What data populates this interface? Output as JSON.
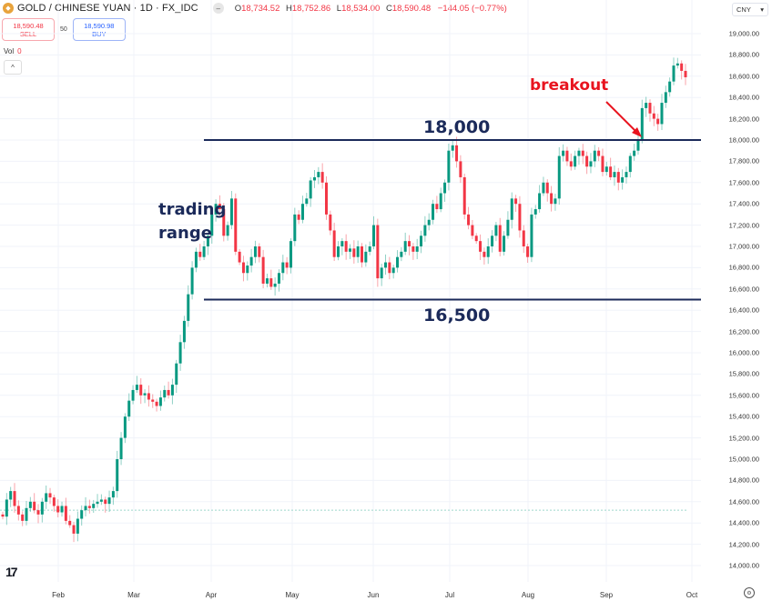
{
  "header": {
    "title": "GOLD / CHINESE YUAN · 1D · FX_IDC",
    "ohlc": [
      {
        "key": "O",
        "value": "18,734.52"
      },
      {
        "key": "H",
        "value": "18,752.86"
      },
      {
        "key": "L",
        "value": "18,534.00"
      },
      {
        "key": "C",
        "value": "18,590.48"
      }
    ],
    "change": "−144.05 (−0.77%)"
  },
  "trade": {
    "sell_price": "18,590.48",
    "sell_label": "SELL",
    "spread": "50",
    "buy_price": "18,590.98",
    "buy_label": "BUY"
  },
  "volume": {
    "label": "Vol",
    "value": "0"
  },
  "currency_selector": {
    "value": "CNY"
  },
  "colors": {
    "up": "#089981",
    "down": "#f23645",
    "annotation_line": "#1b2a5a",
    "breakout": "#e8141f"
  },
  "annotations": {
    "resistance_label": "18,000",
    "support_label": "16,500",
    "range_label_1": "trading",
    "range_label_2": "range",
    "breakout_label": "breakout"
  },
  "chart_data": {
    "type": "candlestick",
    "title": "GOLD / CHINESE YUAN · 1D · FX_IDC",
    "xlabel": "",
    "ylabel": "CNY",
    "x_ticks": [
      "Feb",
      "Mar",
      "Apr",
      "May",
      "Jun",
      "Jul",
      "Aug",
      "Sep",
      "Oct"
    ],
    "y_ticks": [
      "19,000.00",
      "18,800.00",
      "18,600.00",
      "18,400.00",
      "18,200.00",
      "18,000.00",
      "17,800.00",
      "17,600.00",
      "17,400.00",
      "17,200.00",
      "17,000.00",
      "16,800.00",
      "16,600.00",
      "16,400.00",
      "16,200.00",
      "16,000.00",
      "15,800.00",
      "15,600.00",
      "15,400.00",
      "15,200.00",
      "15,000.00",
      "14,800.00",
      "14,600.00",
      "14,400.00",
      "14,200.00",
      "14,000.00"
    ],
    "ylim": [
      14000,
      19000
    ],
    "horizontal_lines": [
      {
        "label": "18,000",
        "value": 18000
      },
      {
        "label": "16,500",
        "value": 16500
      }
    ],
    "reference_line": {
      "value": 14520,
      "style": "dotted"
    },
    "closes": [
      14460,
      14620,
      14700,
      14560,
      14480,
      14420,
      14540,
      14600,
      14520,
      14480,
      14600,
      14680,
      14640,
      14560,
      14500,
      14560,
      14420,
      14380,
      14300,
      14440,
      14520,
      14560,
      14540,
      14580,
      14600,
      14620,
      14580,
      14640,
      14700,
      15000,
      15200,
      15400,
      15550,
      15650,
      15700,
      15600,
      15620,
      15560,
      15540,
      15500,
      15580,
      15650,
      15600,
      15700,
      15900,
      16100,
      16300,
      16550,
      16800,
      16950,
      16900,
      17000,
      17100,
      17300,
      17400,
      17350,
      17100,
      17200,
      17450,
      16950,
      16850,
      16750,
      16820,
      16900,
      17000,
      16900,
      16650,
      16700,
      16620,
      16650,
      16750,
      16850,
      16800,
      17050,
      17300,
      17250,
      17400,
      17450,
      17620,
      17650,
      17700,
      17600,
      17300,
      17150,
      16900,
      17000,
      17050,
      16950,
      16980,
      16900,
      17000,
      16850,
      16950,
      17000,
      17200,
      16700,
      16800,
      16850,
      16750,
      16800,
      16900,
      16950,
      17050,
      17000,
      16950,
      17000,
      17100,
      17200,
      17250,
      17400,
      17350,
      17500,
      17600,
      17900,
      17950,
      17800,
      17650,
      17300,
      17200,
      17100,
      17050,
      16950,
      16900,
      17000,
      17100,
      17200,
      16950,
      17100,
      17250,
      17450,
      17400,
      17150,
      17000,
      16900,
      17300,
      17350,
      17500,
      17600,
      17500,
      17400,
      17450,
      17850,
      17900,
      17800,
      17750,
      17850,
      17900,
      17850,
      17750,
      17800,
      17900,
      17850,
      17700,
      17750,
      17650,
      17700,
      17600,
      17650,
      17700,
      17850,
      17900,
      18000,
      18300,
      18350,
      18250,
      18200,
      18150,
      18350,
      18450,
      18550,
      18700,
      18720,
      18650,
      18590
    ]
  }
}
